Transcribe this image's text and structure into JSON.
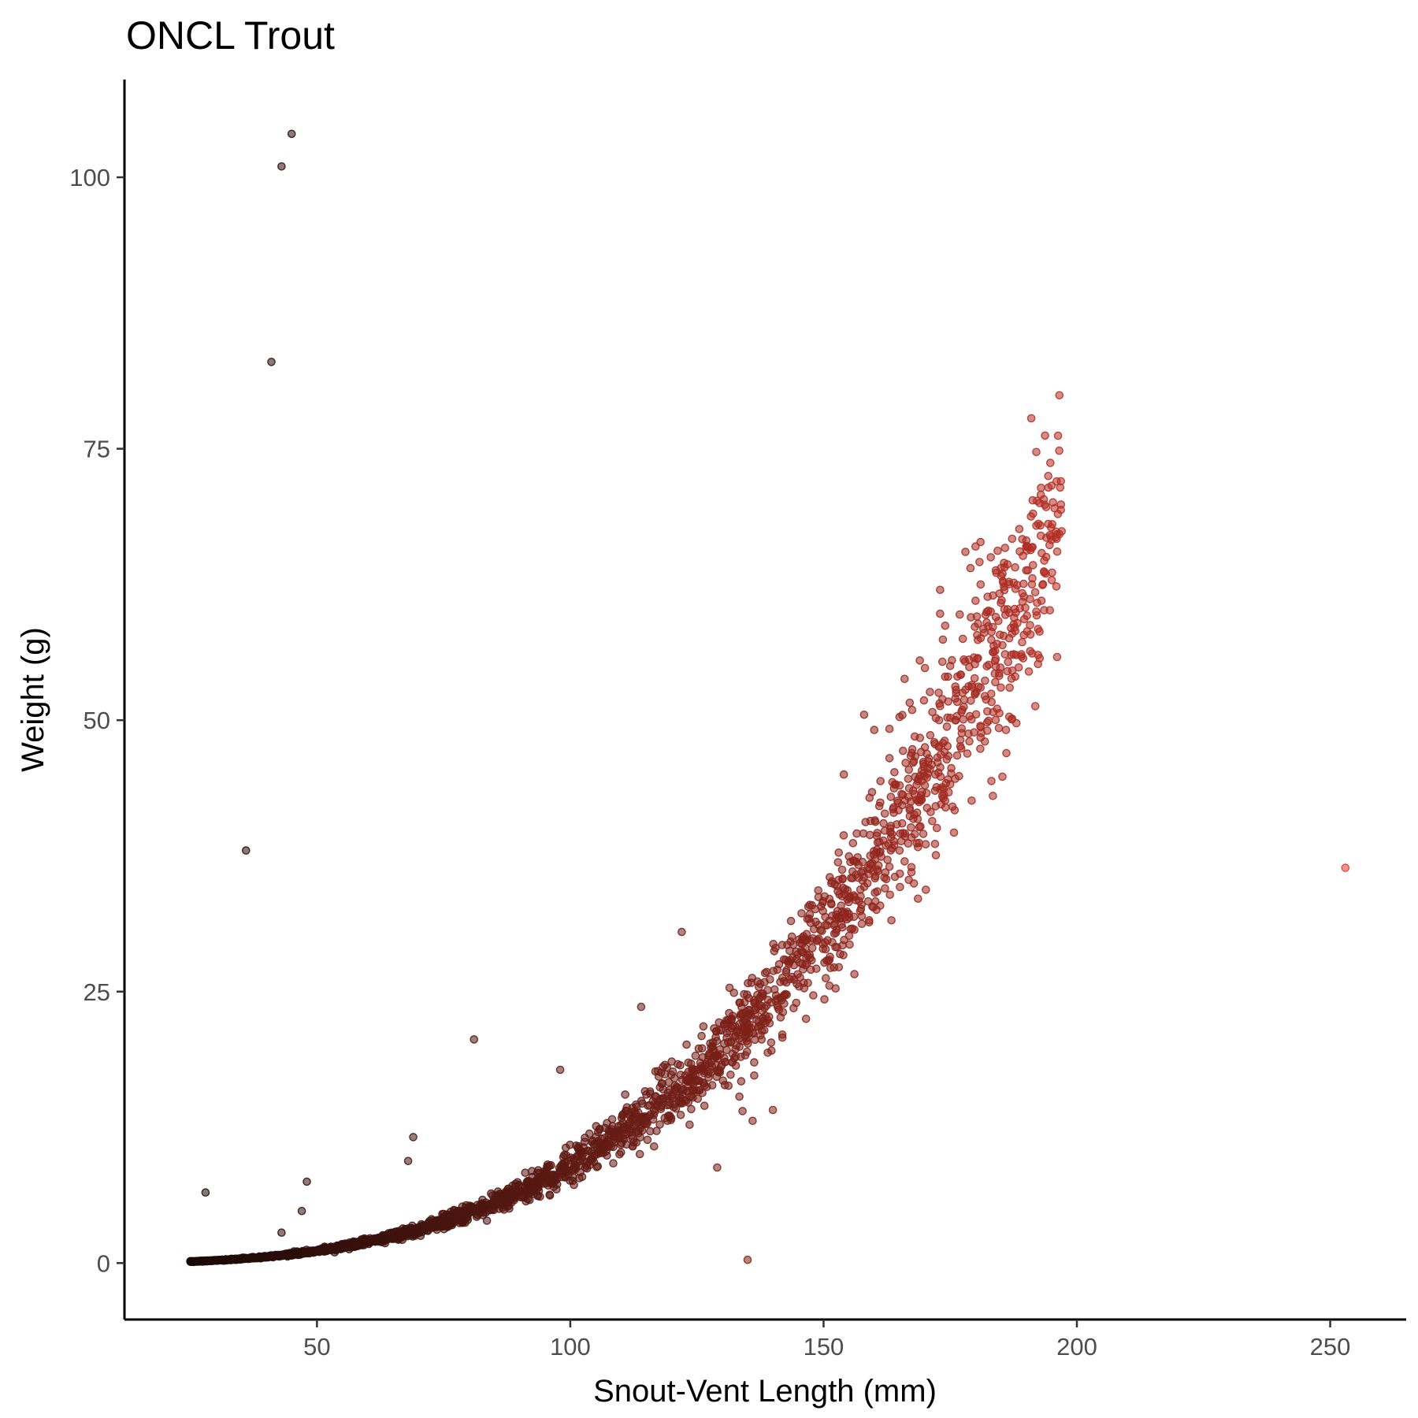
{
  "chart_data": {
    "type": "scatter",
    "title": "ONCL Trout",
    "xlabel": "Snout-Vent Length (mm)",
    "ylabel": "Weight (g)",
    "xlim": [
      12,
      265
    ],
    "ylim": [
      -5.2,
      109
    ],
    "x_ticks": [
      50,
      100,
      150,
      200,
      250
    ],
    "y_ticks": [
      0,
      25,
      50,
      75,
      100
    ],
    "grid": false,
    "legend": "none",
    "color_scale": {
      "low": "#1a0a06",
      "high": "#e83a2e",
      "low_value": 25,
      "high_value": 253
    },
    "marker_opacity": 0.55,
    "model": {
      "a": 9e-06,
      "b": 3.0,
      "n_cluster_points": 2600,
      "x_min": 25,
      "x_max": 197
    },
    "outliers": [
      [
        45,
        104
      ],
      [
        43,
        101
      ],
      [
        41,
        83
      ],
      [
        36,
        38
      ],
      [
        253,
        36.4
      ],
      [
        81,
        20.6
      ],
      [
        122,
        30.5
      ],
      [
        98,
        17.8
      ],
      [
        69,
        11.6
      ],
      [
        68,
        9.4
      ],
      [
        48,
        7.5
      ],
      [
        28,
        6.5
      ],
      [
        47,
        4.8
      ],
      [
        43,
        2.8
      ],
      [
        135,
        0.3
      ],
      [
        129,
        8.8
      ],
      [
        134,
        14
      ],
      [
        136,
        13.1
      ],
      [
        140,
        14.1
      ],
      [
        114,
        23.6
      ]
    ],
    "upper_points": [
      [
        191,
        77.8
      ],
      [
        192,
        74.7
      ],
      [
        195,
        71.6
      ],
      [
        196,
        72
      ],
      [
        194,
        66.8
      ],
      [
        195,
        66.6
      ],
      [
        196,
        66.7
      ],
      [
        197,
        67.4
      ],
      [
        190,
        66
      ],
      [
        178,
        65.5
      ],
      [
        180,
        66
      ],
      [
        183,
        65
      ],
      [
        185,
        64
      ],
      [
        184,
        63.8
      ],
      [
        179,
        64
      ],
      [
        181,
        62.5
      ],
      [
        173,
        62
      ],
      [
        190,
        63.8
      ],
      [
        193,
        61
      ],
      [
        192,
        60
      ],
      [
        185,
        60.8
      ],
      [
        183,
        60
      ],
      [
        184,
        59.5
      ],
      [
        182,
        59.7
      ],
      [
        180,
        61
      ],
      [
        173,
        59.8
      ],
      [
        174,
        58.7
      ],
      [
        188,
        56
      ],
      [
        181,
        53
      ],
      [
        185,
        53
      ],
      [
        178,
        52.8
      ],
      [
        171,
        52.6
      ],
      [
        176,
        52
      ],
      [
        170,
        54.8
      ],
      [
        169,
        55.5
      ],
      [
        166,
        53.8
      ],
      [
        174,
        54
      ],
      [
        175,
        55
      ],
      [
        186,
        49.1
      ],
      [
        181,
        48.4
      ],
      [
        173,
        51.3
      ],
      [
        167,
        51.6
      ],
      [
        165,
        50.3
      ],
      [
        158,
        50.5
      ],
      [
        163,
        49.2
      ],
      [
        160,
        49.1
      ],
      [
        168,
        48.5
      ],
      [
        176,
        50
      ],
      [
        172,
        47.8
      ],
      [
        170,
        47.5
      ],
      [
        177,
        47.6
      ],
      [
        154,
        45
      ],
      [
        175,
        44.1
      ],
      [
        176,
        44.6
      ],
      [
        172,
        43.5
      ],
      [
        170,
        44
      ],
      [
        163,
        46.5
      ],
      [
        171,
        45.5
      ],
      [
        169,
        42.8
      ],
      [
        167,
        41.9
      ],
      [
        174,
        42.6
      ],
      [
        168,
        39.5
      ],
      [
        172,
        38.6
      ],
      [
        165,
        38
      ],
      [
        166,
        37
      ],
      [
        163,
        36.5
      ],
      [
        161,
        38.8
      ],
      [
        153,
        37.8
      ],
      [
        162,
        35.5
      ]
    ]
  }
}
